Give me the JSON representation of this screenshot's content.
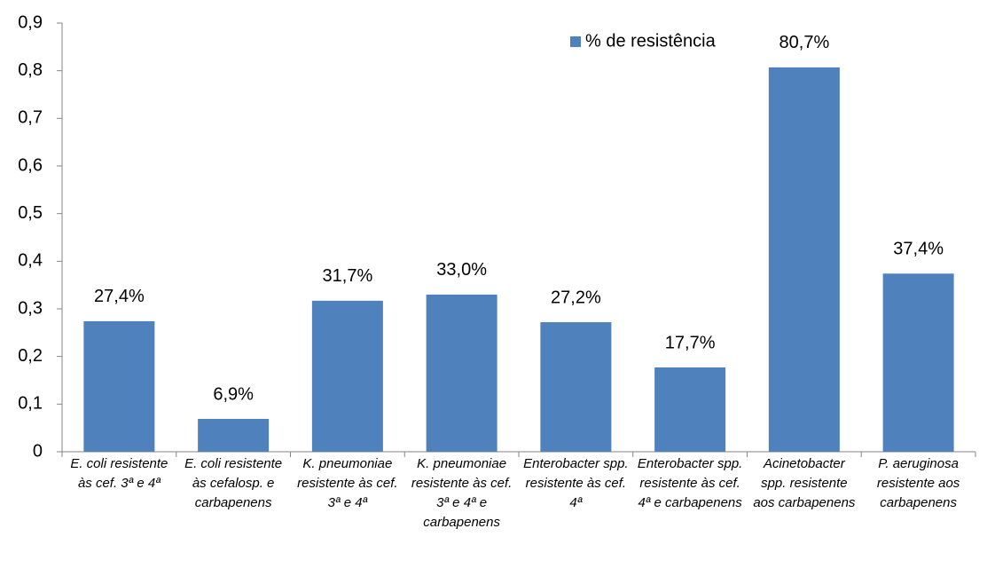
{
  "chart_data": {
    "type": "bar",
    "categories": [
      "E. coli resistente às cef. 3ª e 4ª",
      "E. coli resistente às cefalosp. e carbapenens",
      "K. pneumoniae resistente às cef. 3ª e 4ª",
      "K. pneumoniae resistente às cef. 3ª e 4ª e carbapenens",
      "Enterobacter spp. resistente às cef. 4ª",
      "Enterobacter spp. resistente às cef. 4ª e carbapenens",
      "Acinetobacter spp. resistente aos carbapenens",
      "P. aeruginosa resistente aos carbapenens"
    ],
    "series": [
      {
        "name": "% de resistência",
        "color": "#4f81bd",
        "values": [
          0.274,
          0.069,
          0.317,
          0.33,
          0.272,
          0.177,
          0.807,
          0.374
        ],
        "value_labels": [
          "27,4%",
          "6,9%",
          "31,7%",
          "33,0%",
          "27,2%",
          "17,7%",
          "80,7%",
          "37,4%"
        ]
      }
    ],
    "ylim": [
      0,
      0.9
    ],
    "yticks": [
      0,
      {
        "value": 0.1,
        "label": "0,1"
      },
      {
        "value": 0.2,
        "label": "0,2"
      },
      {
        "value": 0.3,
        "label": "0,3"
      },
      {
        "value": 0.4,
        "label": "0,4"
      },
      {
        "value": 0.5,
        "label": "0,5"
      },
      {
        "value": 0.6,
        "label": "0,6"
      },
      {
        "value": 0.7,
        "label": "0,7"
      },
      {
        "value": 0.8,
        "label": "0,8"
      },
      {
        "value": 0.9,
        "label": "0,9"
      }
    ],
    "legend": "top-right",
    "grid": false
  }
}
